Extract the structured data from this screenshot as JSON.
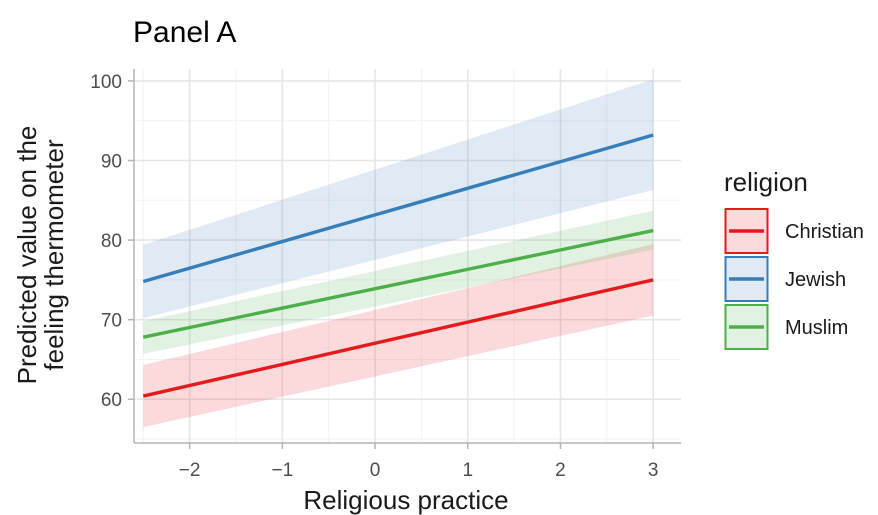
{
  "chart_data": {
    "type": "line",
    "title": "Panel A",
    "xlabel": "Religious practice",
    "ylabel_lines": [
      "Predicted value on the",
      "feeling thermometer"
    ],
    "xlim": [
      -2.6,
      3.3
    ],
    "ylim": [
      54.5,
      101.5
    ],
    "xticks": [
      -2,
      -1,
      0,
      1,
      2,
      3
    ],
    "xtick_labels": [
      "−2",
      "−1",
      "0",
      "1",
      "2",
      "3"
    ],
    "yticks": [
      60,
      70,
      80,
      90,
      100
    ],
    "ytick_labels": [
      "60",
      "70",
      "80",
      "90",
      "100"
    ],
    "grid": true,
    "legend": {
      "title": "religion",
      "position": "right"
    },
    "series": [
      {
        "name": "Christian",
        "color": "#e41a1c",
        "x": [
          -2.5,
          3
        ],
        "y": [
          60.4,
          75.0
        ],
        "lower": [
          56.5,
          70.5
        ],
        "upper": [
          64.3,
          79.5
        ]
      },
      {
        "name": "Jewish",
        "color": "#377eb8",
        "x": [
          -2.5,
          3
        ],
        "y": [
          74.8,
          93.2
        ],
        "lower": [
          70.2,
          86.3
        ],
        "upper": [
          79.4,
          100.2
        ]
      },
      {
        "name": "Muslim",
        "color": "#4daf4a",
        "x": [
          -2.5,
          3
        ],
        "y": [
          67.8,
          81.2
        ],
        "lower": [
          65.7,
          78.8
        ],
        "upper": [
          69.8,
          83.7
        ]
      }
    ]
  }
}
